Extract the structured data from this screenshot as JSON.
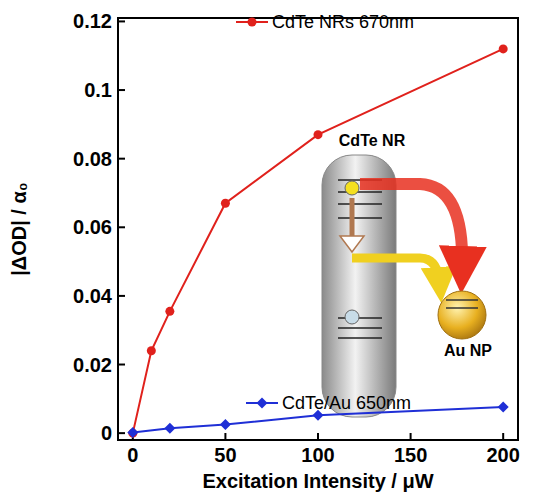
{
  "chart_data": {
    "type": "line",
    "x_label": "Excitation Intensity / μW",
    "y_label": "|ΔOD| / α₀",
    "xlim": [
      -8,
      208
    ],
    "xticks": [
      0,
      50,
      100,
      150,
      200
    ],
    "ylim": [
      -0.002,
      0.121
    ],
    "yticks": [
      0,
      0.02,
      0.04,
      0.06,
      0.08,
      0.1,
      0.12
    ],
    "grid": false,
    "series": [
      {
        "name": "CdTe NRs 670nm",
        "color": "#e0211c",
        "marker": "circle",
        "x": [
          0,
          10,
          20,
          50,
          100,
          200
        ],
        "values": [
          0,
          0.024,
          0.0355,
          0.067,
          0.087,
          0.112
        ]
      },
      {
        "name": "CdTe/Au 650nm",
        "color": "#1f2fd6",
        "marker": "diamond",
        "x": [
          0,
          20,
          50,
          100,
          200
        ],
        "values": [
          0.0002,
          0.0014,
          0.0025,
          0.0052,
          0.0076
        ]
      }
    ],
    "annotations": [
      "CdTe NR",
      "Au NP"
    ]
  }
}
